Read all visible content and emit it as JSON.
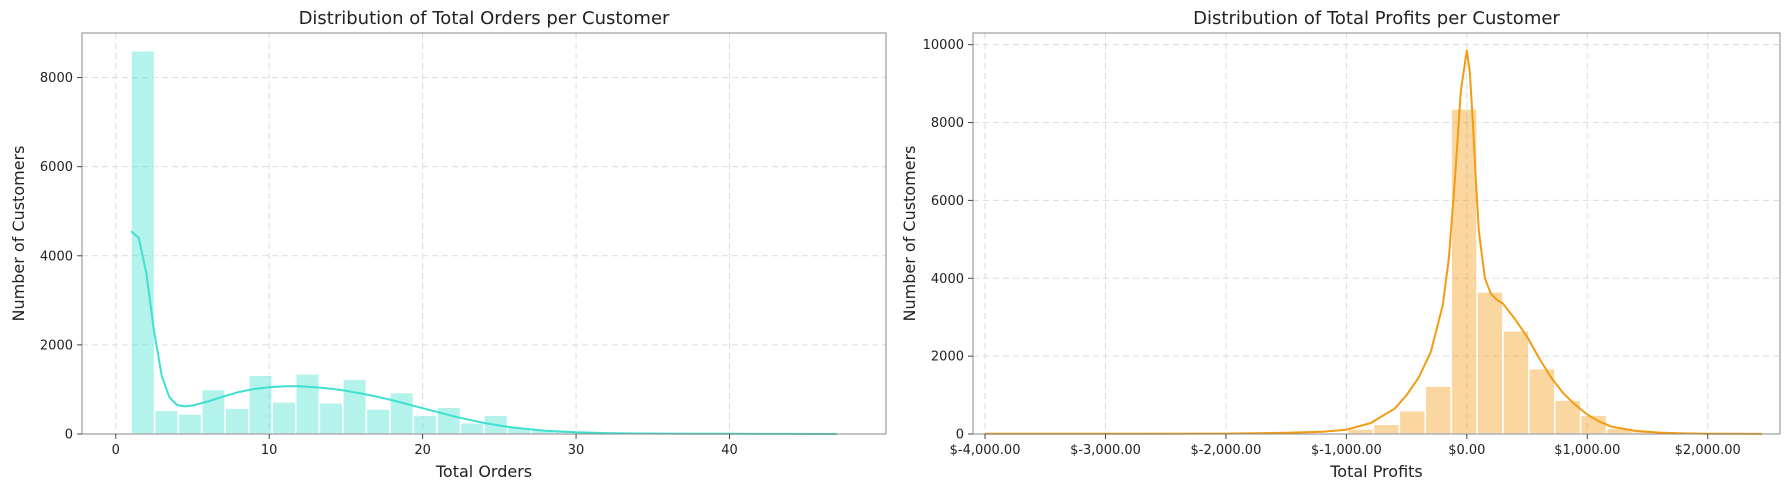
{
  "chart_data": [
    {
      "type": "bar",
      "subtype": "histogram-with-kde",
      "title": "Distribution of Total Orders per Customer",
      "xlabel": "Total Orders",
      "ylabel": "Number of Customers",
      "xlim": [
        -2.2,
        50.2
      ],
      "ylim": [
        0,
        9000
      ],
      "xticks": [
        0,
        10,
        20,
        30,
        40
      ],
      "xtick_labels": [
        "0",
        "10",
        "20",
        "30",
        "40"
      ],
      "yticks": [
        0,
        2000,
        4000,
        6000,
        8000
      ],
      "ytick_labels": [
        "0",
        "2000",
        "4000",
        "6000",
        "8000"
      ],
      "grid": true,
      "color": "#40E0D0",
      "bins": [
        {
          "x0": 1.0,
          "x1": 2.53,
          "count": 8600
        },
        {
          "x0": 2.53,
          "x1": 4.07,
          "count": 530
        },
        {
          "x0": 4.07,
          "x1": 5.6,
          "count": 450
        },
        {
          "x0": 5.6,
          "x1": 7.13,
          "count": 1000
        },
        {
          "x0": 7.13,
          "x1": 8.67,
          "count": 580
        },
        {
          "x0": 8.67,
          "x1": 10.2,
          "count": 1320
        },
        {
          "x0": 10.2,
          "x1": 11.73,
          "count": 720
        },
        {
          "x0": 11.73,
          "x1": 13.27,
          "count": 1350
        },
        {
          "x0": 13.27,
          "x1": 14.8,
          "count": 700
        },
        {
          "x0": 14.8,
          "x1": 16.33,
          "count": 1230
        },
        {
          "x0": 16.33,
          "x1": 17.87,
          "count": 560
        },
        {
          "x0": 17.87,
          "x1": 19.4,
          "count": 930
        },
        {
          "x0": 19.4,
          "x1": 20.93,
          "count": 420
        },
        {
          "x0": 20.93,
          "x1": 22.47,
          "count": 600
        },
        {
          "x0": 22.47,
          "x1": 24.0,
          "count": 250
        },
        {
          "x0": 24.0,
          "x1": 25.53,
          "count": 420
        },
        {
          "x0": 25.53,
          "x1": 27.07,
          "count": 150
        },
        {
          "x0": 27.07,
          "x1": 28.6,
          "count": 100
        },
        {
          "x0": 28.6,
          "x1": 30.13,
          "count": 60
        },
        {
          "x0": 30.13,
          "x1": 31.67,
          "count": 40
        },
        {
          "x0": 31.67,
          "x1": 33.2,
          "count": 25
        },
        {
          "x0": 33.2,
          "x1": 34.73,
          "count": 15
        },
        {
          "x0": 34.73,
          "x1": 36.27,
          "count": 10
        },
        {
          "x0": 36.27,
          "x1": 37.8,
          "count": 6
        },
        {
          "x0": 37.8,
          "x1": 39.33,
          "count": 4
        },
        {
          "x0": 39.33,
          "x1": 40.87,
          "count": 3
        },
        {
          "x0": 40.87,
          "x1": 42.4,
          "count": 2
        },
        {
          "x0": 42.4,
          "x1": 43.93,
          "count": 1
        },
        {
          "x0": 43.93,
          "x1": 45.47,
          "count": 1
        },
        {
          "x0": 45.47,
          "x1": 47.0,
          "count": 1
        }
      ],
      "kde": {
        "x": [
          1.0,
          1.5,
          2.0,
          2.5,
          3.0,
          3.5,
          4.0,
          4.5,
          5.0,
          6.0,
          7.0,
          8.0,
          9.0,
          10.0,
          11.0,
          12.0,
          13.0,
          14.0,
          15.0,
          16.0,
          17.0,
          18.0,
          19.0,
          20.0,
          21.0,
          22.0,
          23.0,
          24.0,
          25.0,
          26.0,
          28.0,
          30.0,
          32.0,
          34.0,
          36.0,
          38.0,
          40.0,
          42.0,
          44.0,
          47.0
        ],
        "y": [
          4550,
          4400,
          3600,
          2300,
          1300,
          820,
          650,
          620,
          640,
          730,
          840,
          940,
          1010,
          1050,
          1070,
          1070,
          1050,
          1020,
          970,
          910,
          840,
          760,
          670,
          580,
          490,
          400,
          320,
          250,
          190,
          140,
          75,
          38,
          20,
          12,
          8,
          6,
          4,
          3,
          2,
          1
        ]
      }
    },
    {
      "type": "bar",
      "subtype": "histogram-with-kde",
      "title": "Distribution of Total Profits per Customer",
      "xlabel": "Total Profits",
      "ylabel": "Number of Customers",
      "xlim": [
        -4100,
        2600
      ],
      "ylim": [
        0,
        10300
      ],
      "xticks": [
        -4000,
        -3000,
        -2000,
        -1000,
        0,
        1000,
        2000
      ],
      "xtick_labels": [
        "$-4,000.00",
        "$-3,000.00",
        "$-2,000.00",
        "$-1,000.00",
        "$0.00",
        "$1,000.00",
        "$2,000.00"
      ],
      "yticks": [
        0,
        2000,
        4000,
        6000,
        8000,
        10000
      ],
      "ytick_labels": [
        "0",
        "2000",
        "4000",
        "6000",
        "8000",
        "10000"
      ],
      "grid": true,
      "color": "#F39C12",
      "bins": [
        {
          "x0": -4000,
          "x1": -3785,
          "count": 2
        },
        {
          "x0": -3785,
          "x1": -3570,
          "count": 1
        },
        {
          "x0": -3570,
          "x1": -3355,
          "count": 1
        },
        {
          "x0": -3355,
          "x1": -3140,
          "count": 1
        },
        {
          "x0": -3140,
          "x1": -2925,
          "count": 2
        },
        {
          "x0": -2925,
          "x1": -2710,
          "count": 2
        },
        {
          "x0": -2710,
          "x1": -2495,
          "count": 3
        },
        {
          "x0": -2495,
          "x1": -2280,
          "count": 4
        },
        {
          "x0": -2280,
          "x1": -2065,
          "count": 5
        },
        {
          "x0": -2065,
          "x1": -1850,
          "count": 8
        },
        {
          "x0": -1850,
          "x1": -1635,
          "count": 10
        },
        {
          "x0": -1635,
          "x1": -1420,
          "count": 15
        },
        {
          "x0": -1420,
          "x1": -1205,
          "count": 20
        },
        {
          "x0": -1205,
          "x1": -990,
          "count": 35
        },
        {
          "x0": -990,
          "x1": -775,
          "count": 130
        },
        {
          "x0": -775,
          "x1": -560,
          "count": 250
        },
        {
          "x0": -560,
          "x1": -345,
          "count": 600
        },
        {
          "x0": -345,
          "x1": -130,
          "count": 1230
        },
        {
          "x0": -130,
          "x1": 85,
          "count": 8350
        },
        {
          "x0": 85,
          "x1": 300,
          "count": 3650
        },
        {
          "x0": 300,
          "x1": 515,
          "count": 2650
        },
        {
          "x0": 515,
          "x1": 730,
          "count": 1680
        },
        {
          "x0": 730,
          "x1": 945,
          "count": 870
        },
        {
          "x0": 945,
          "x1": 1160,
          "count": 480
        },
        {
          "x0": 1160,
          "x1": 1375,
          "count": 150
        },
        {
          "x0": 1375,
          "x1": 1590,
          "count": 60
        },
        {
          "x0": 1590,
          "x1": 1805,
          "count": 25
        },
        {
          "x0": 1805,
          "x1": 2020,
          "count": 12
        },
        {
          "x0": 2020,
          "x1": 2235,
          "count": 6
        },
        {
          "x0": 2235,
          "x1": 2450,
          "count": 3
        }
      ],
      "kde": {
        "x": [
          -4000,
          -3000,
          -2000,
          -1500,
          -1200,
          -1000,
          -800,
          -600,
          -500,
          -400,
          -300,
          -200,
          -150,
          -100,
          -50,
          0,
          25,
          50,
          75,
          100,
          150,
          200,
          250,
          300,
          400,
          500,
          600,
          700,
          800,
          900,
          1000,
          1100,
          1200,
          1400,
          1600,
          1800,
          2000,
          2200,
          2450
        ],
        "y": [
          5,
          5,
          10,
          30,
          60,
          110,
          280,
          650,
          1000,
          1450,
          2100,
          3300,
          4500,
          6500,
          8800,
          9850,
          9300,
          8000,
          6500,
          5200,
          4000,
          3600,
          3450,
          3350,
          2950,
          2500,
          1950,
          1450,
          1050,
          750,
          500,
          320,
          190,
          80,
          35,
          15,
          8,
          4,
          2
        ]
      }
    }
  ]
}
